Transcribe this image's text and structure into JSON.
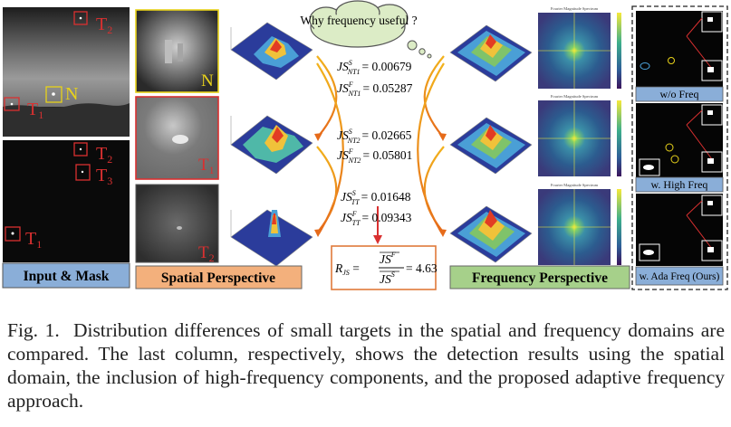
{
  "panel_labels": {
    "input": "Input & Mask",
    "spatial": "Spatial Perspective",
    "frequency": "Frequency Perspective"
  },
  "target_labels": {
    "t1": "T",
    "t1_sub": "1",
    "t2": "T",
    "t2_sub": "2",
    "t3": "T",
    "t3_sub": "3",
    "n": "N"
  },
  "cloud_text": "Why frequency useful ?",
  "equations": {
    "js_nt1_s_value": "0.00679",
    "js_nt1_f_value": "0.05287",
    "js_nt2_s_value": "0.02665",
    "js_nt2_f_value": "0.05801",
    "js_tt_s_value": "0.01648",
    "js_tt_f_value": "0.09343",
    "js_symbol": "JS",
    "sup_s": "S",
    "sup_f": "F",
    "sub_nt1": "NT1",
    "sub_nt2": "NT2",
    "sub_tt": "TT",
    "ratio_label": "R",
    "ratio_sub": "JS",
    "ratio_value": "= 4.63"
  },
  "spectrum_title": "Fourier Magnitude Spectrum",
  "result_labels": {
    "wo_freq": "w/o Freq",
    "high_freq": "w. High Freq",
    "ada_freq": "w. Ada Freq (Ours)"
  },
  "caption": {
    "figure_label": "Fig. 1.",
    "text": "Distribution differences of small targets in the spatial and frequency domains are compared. The last column, respectively, shows the detection results using the spatial domain, the inclusion of high-frequency components, and the proposed adaptive frequency approach."
  },
  "colors": {
    "red_box": "#d93030",
    "yellow_box": "#e8d21a",
    "input_label_bg": "#8aaed8",
    "spatial_label_bg": "#f3b07c",
    "frequency_label_bg": "#a6d08a",
    "cloud_fill": "#dcecc6"
  }
}
